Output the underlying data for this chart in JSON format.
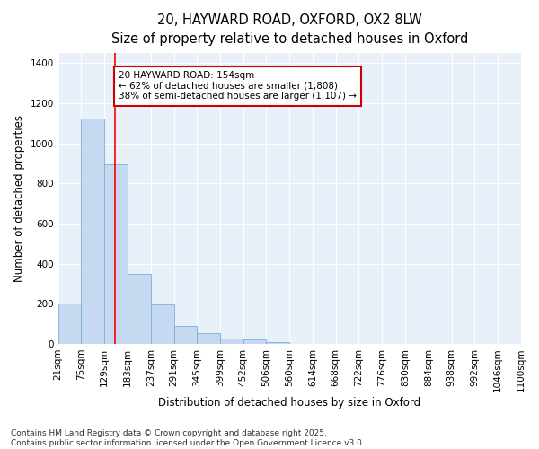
{
  "title_line1": "20, HAYWARD ROAD, OXFORD, OX2 8LW",
  "title_line2": "Size of property relative to detached houses in Oxford",
  "xlabel": "Distribution of detached houses by size in Oxford",
  "ylabel": "Number of detached properties",
  "bin_edges": [
    21,
    75,
    129,
    183,
    237,
    291,
    345,
    399,
    452,
    506,
    560,
    614,
    668,
    722,
    776,
    830,
    884,
    938,
    992,
    1046,
    1100
  ],
  "bar_heights": [
    200,
    1125,
    895,
    350,
    195,
    90,
    55,
    25,
    20,
    10,
    0,
    0,
    0,
    0,
    0,
    0,
    0,
    0,
    0,
    0
  ],
  "bar_color": "#c5d9f0",
  "bar_edge_color": "#7aaed6",
  "plot_bg_color": "#e8f0fa",
  "fig_bg_color": "#ffffff",
  "grid_color": "#ffffff",
  "red_line_x": 154,
  "annotation_text": "20 HAYWARD ROAD: 154sqm\n← 62% of detached houses are smaller (1,808)\n38% of semi-detached houses are larger (1,107) →",
  "annotation_box_color": "#ffffff",
  "annotation_box_edge_color": "#cc0000",
  "ylim": [
    0,
    1450
  ],
  "yticks": [
    0,
    200,
    400,
    600,
    800,
    1000,
    1200,
    1400
  ],
  "footnote_line1": "Contains HM Land Registry data © Crown copyright and database right 2025.",
  "footnote_line2": "Contains public sector information licensed under the Open Government Licence v3.0.",
  "title_fontsize": 10.5,
  "subtitle_fontsize": 9.5,
  "axis_label_fontsize": 8.5,
  "tick_fontsize": 7.5,
  "annotation_fontsize": 7.5,
  "footnote_fontsize": 6.5
}
